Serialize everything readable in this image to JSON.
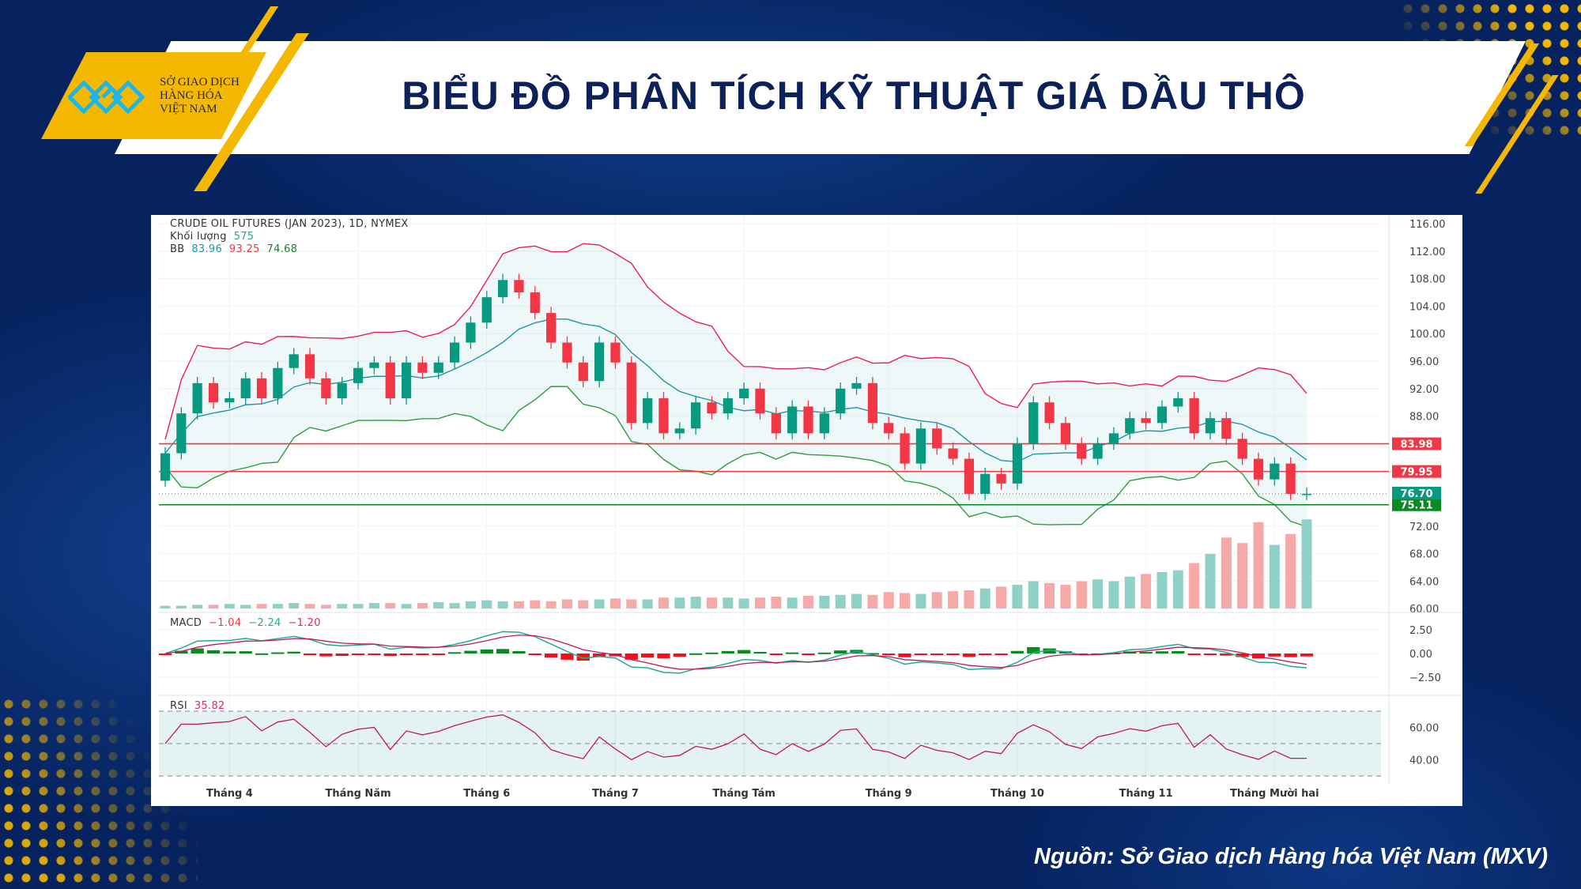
{
  "header": {
    "title": "BIỂU ĐỒ PHÂN TÍCH KỸ THUẬT GIÁ DẦU THÔ",
    "logo_lines": [
      "SỞ GIAO DỊCH",
      "HÀNG HÓA",
      "VIỆT NAM"
    ]
  },
  "source": "Nguồn: Sở Giao dịch Hàng hóa Việt Nam (MXV)",
  "colors": {
    "up": "#089981",
    "down": "#f23645",
    "bb_upper": "#e91e63",
    "bb_mid": "#2196a3",
    "bb_lower": "#2e9e3e",
    "navy": "#06235f",
    "yellow": "#f5b800"
  },
  "chart_data": {
    "type": "candlestick",
    "title": "CRUDE OIL FUTURES (JAN 2023), 1D, NYMEX",
    "volume_label": "Khối lượng",
    "volume_value": "575",
    "bb_label": "BB",
    "bb_values": [
      "83.96",
      "93.25",
      "74.68"
    ],
    "macd_label": "MACD",
    "macd_values": [
      "−1.04",
      "−2.24",
      "−1.20"
    ],
    "rsi_label": "RSI",
    "rsi_value": "35.82",
    "price_ticks": [
      "116.00",
      "112.00",
      "108.00",
      "104.00",
      "100.00",
      "96.00",
      "92.00",
      "88.00",
      "72.00",
      "68.00",
      "64.00",
      "60.00"
    ],
    "price_tick_values": [
      116,
      112,
      108,
      104,
      100,
      96,
      92,
      88,
      72,
      68,
      64,
      60
    ],
    "ylim": [
      60,
      116
    ],
    "macd_ticks": [
      "2.50",
      "0.00",
      "−2.50"
    ],
    "macd_tick_values": [
      2.5,
      0,
      -2.5
    ],
    "rsi_ticks": [
      "60.00",
      "40.00"
    ],
    "rsi_tick_values": [
      60,
      40
    ],
    "levels": [
      {
        "label": "83.98",
        "value": 83.98,
        "color": "#f23645"
      },
      {
        "label": "79.95",
        "value": 79.95,
        "color": "#f23645"
      },
      {
        "label": "75.11",
        "value": 75.11,
        "color": "#0a8a22"
      }
    ],
    "last_price": {
      "label": "76.70",
      "value": 76.7,
      "color": "#089981"
    },
    "x_labels": [
      "Tháng 4",
      "Tháng Năm",
      "Tháng 6",
      "Tháng 7",
      "Tháng Tám",
      "Tháng 9",
      "Tháng 10",
      "Tháng 11",
      "Tháng Mười hai"
    ],
    "x_label_index": [
      4,
      12,
      20,
      28,
      36,
      45,
      53,
      61,
      69
    ],
    "closes": [
      82.6,
      88.4,
      92.8,
      90,
      90.6,
      93.5,
      90.6,
      95,
      97,
      93.5,
      90.6,
      92.8,
      95,
      95.8,
      90.6,
      95.8,
      94.3,
      95.8,
      98.7,
      101.6,
      105.3,
      107.8,
      106,
      103,
      98.7,
      95.8,
      93.1,
      98.7,
      95.8,
      87,
      90.6,
      85.5,
      86.2,
      90,
      88.4,
      90.6,
      92,
      88.4,
      85.5,
      89.4,
      85.5,
      88.4,
      92,
      92.8,
      87,
      85.5,
      81.1,
      86.2,
      83.3,
      81.8,
      76.7,
      79.6,
      78.2,
      84,
      90,
      87,
      84,
      81.8,
      84,
      85.5,
      87.7,
      87,
      89.4,
      90.6,
      85.5,
      87.7,
      84.7,
      81.8,
      78.8,
      81.1,
      76.7,
      76.7
    ],
    "volume": [
      3,
      3,
      4,
      4,
      5,
      4,
      5,
      5,
      6,
      5,
      4,
      5,
      5,
      6,
      6,
      5,
      6,
      7,
      6,
      8,
      9,
      8,
      8,
      9,
      8,
      10,
      9,
      10,
      11,
      10,
      10,
      12,
      12,
      13,
      12,
      12,
      11,
      12,
      13,
      12,
      14,
      14,
      15,
      16,
      15,
      18,
      17,
      16,
      18,
      19,
      20,
      22,
      24,
      26,
      30,
      28,
      26,
      30,
      32,
      30,
      35,
      38,
      40,
      42,
      50,
      60,
      78,
      72,
      95,
      70,
      82,
      98
    ]
  }
}
